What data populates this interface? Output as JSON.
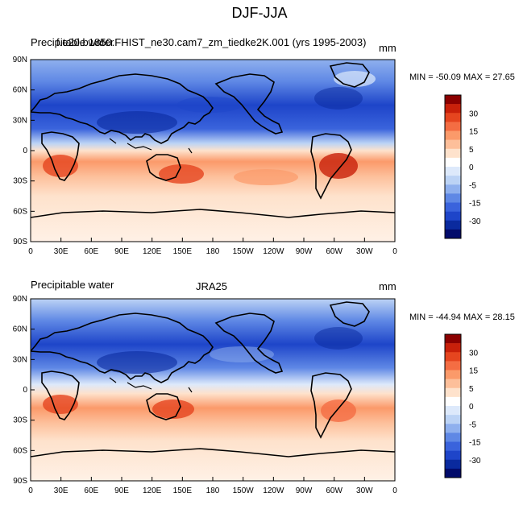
{
  "title": "DJF-JJA",
  "panels": [
    {
      "left_label": "Precipitable water",
      "center_label": "f.e20.b1850.FHIST_ne30.cam7_zm_tiedke2K.001 (yrs 1995-2003)",
      "units": "mm",
      "minmax": "MIN = -50.09 MAX =  27.65"
    },
    {
      "left_label": "Precipitable water",
      "center_label": "JRA25",
      "units": "mm",
      "minmax": "MIN = -44.94 MAX =  28.15"
    }
  ],
  "lat_ticks": [
    "90N",
    "60N",
    "30N",
    "0",
    "30S",
    "60S",
    "90S"
  ],
  "lon_ticks": [
    "0",
    "30E",
    "60E",
    "90E",
    "120E",
    "150E",
    "180",
    "150W",
    "120W",
    "90W",
    "60W",
    "30W",
    "0"
  ],
  "colorbar_labels": [
    "30",
    "15",
    "5",
    "0",
    "-5",
    "-15",
    "-30"
  ],
  "colorbar_colors": [
    "#8b0000",
    "#c8200a",
    "#e5451f",
    "#f46d43",
    "#fb9a6a",
    "#fdbf9a",
    "#fee2cc",
    "#ffffff",
    "#dde9fb",
    "#bcd3f5",
    "#8fb0ee",
    "#5f88e5",
    "#3a63dc",
    "#1e45c9",
    "#0a2a9e",
    "#020b6b"
  ]
}
